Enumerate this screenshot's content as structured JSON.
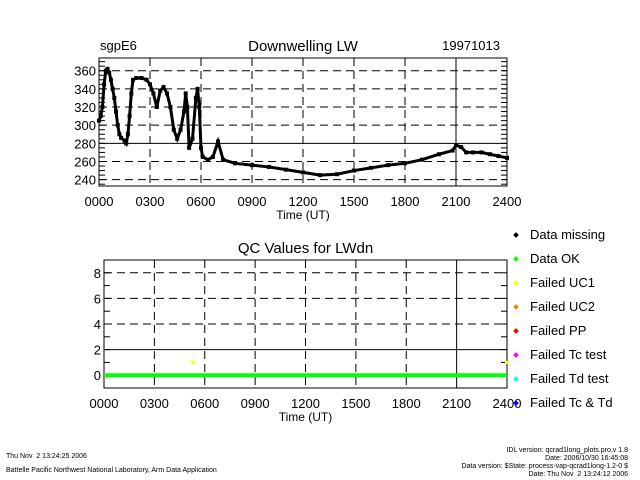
{
  "chart_data": [
    {
      "type": "scatter",
      "title": "Downwelling LW",
      "site": "sgpE6",
      "date": "19971013",
      "xlabel": "Time (UT)",
      "ylabel": "",
      "xlim": [
        0,
        24
      ],
      "ylim": [
        233,
        374
      ],
      "xticks": [
        "0000",
        "0300",
        "0600",
        "0900",
        "1200",
        "1500",
        "1800",
        "2100",
        "2400"
      ],
      "yticks": [
        240,
        260,
        280,
        300,
        320,
        340,
        360
      ],
      "grid": true,
      "points": [
        [
          0.0,
          305
        ],
        [
          0.1,
          310
        ],
        [
          0.2,
          320
        ],
        [
          0.3,
          345
        ],
        [
          0.4,
          360
        ],
        [
          0.5,
          362
        ],
        [
          0.6,
          358
        ],
        [
          0.7,
          350
        ],
        [
          0.8,
          340
        ],
        [
          0.9,
          330
        ],
        [
          1.0,
          315
        ],
        [
          1.1,
          300
        ],
        [
          1.2,
          290
        ],
        [
          1.3,
          286
        ],
        [
          1.5,
          283
        ],
        [
          1.6,
          280
        ],
        [
          1.7,
          290
        ],
        [
          1.8,
          310
        ],
        [
          1.9,
          335
        ],
        [
          2.0,
          350
        ],
        [
          2.2,
          352
        ],
        [
          2.5,
          352
        ],
        [
          2.8,
          350
        ],
        [
          3.0,
          345
        ],
        [
          3.2,
          335
        ],
        [
          3.4,
          320
        ],
        [
          3.6,
          338
        ],
        [
          3.8,
          342
        ],
        [
          4.0,
          335
        ],
        [
          4.2,
          320
        ],
        [
          4.4,
          295
        ],
        [
          4.6,
          285
        ],
        [
          4.8,
          295
        ],
        [
          5.0,
          315
        ],
        [
          5.1,
          335
        ],
        [
          5.2,
          320
        ],
        [
          5.3,
          275
        ],
        [
          5.5,
          285
        ],
        [
          5.7,
          330
        ],
        [
          5.8,
          340
        ],
        [
          5.9,
          320
        ],
        [
          6.0,
          275
        ],
        [
          6.1,
          265
        ],
        [
          6.4,
          262
        ],
        [
          6.7,
          265
        ],
        [
          7.0,
          282
        ],
        [
          7.3,
          262
        ],
        [
          8,
          258
        ],
        [
          9,
          256
        ],
        [
          10,
          254
        ],
        [
          11,
          251
        ],
        [
          12,
          248
        ],
        [
          13,
          245
        ],
        [
          14,
          246
        ],
        [
          15,
          250
        ],
        [
          16,
          253
        ],
        [
          17,
          256
        ],
        [
          18,
          258
        ],
        [
          19,
          262
        ],
        [
          20,
          268
        ],
        [
          20.8,
          272
        ],
        [
          21.0,
          278
        ],
        [
          21.3,
          276
        ],
        [
          21.6,
          270
        ],
        [
          22,
          270
        ],
        [
          22.5,
          270
        ],
        [
          23,
          268
        ],
        [
          23.5,
          266
        ],
        [
          24,
          264
        ]
      ]
    },
    {
      "type": "scatter",
      "title": "QC Values for LWdn",
      "xlabel": "Time (UT)",
      "ylabel": "",
      "xlim": [
        0,
        24
      ],
      "ylim": [
        -1,
        9
      ],
      "xticks": [
        "0000",
        "0300",
        "0600",
        "0900",
        "1200",
        "1500",
        "1800",
        "2100",
        "2400"
      ],
      "yticks": [
        0,
        2,
        4,
        6,
        8
      ],
      "grid": true,
      "series": [
        {
          "name": "Data OK",
          "color": "#00ff00",
          "value": 0,
          "range": [
            0,
            24
          ]
        },
        {
          "name": "Failed UC1",
          "color": "#ffff00",
          "points": [
            [
              5.3,
              1
            ],
            [
              24,
              1
            ]
          ]
        }
      ],
      "legend": {
        "placement": "right",
        "entries": [
          {
            "label": "Data missing",
            "color": "#000000"
          },
          {
            "label": "Data OK",
            "color": "#00ff00"
          },
          {
            "label": "Failed UC1",
            "color": "#ffff00"
          },
          {
            "label": "Failed UC2",
            "color": "#ff8000"
          },
          {
            "label": "Failed PP",
            "color": "#ff0000"
          },
          {
            "label": "Failed Tc test",
            "color": "#ff00ff"
          },
          {
            "label": "Failed Td test",
            "color": "#00ffff"
          },
          {
            "label": "Failed Tc & Td",
            "color": "#0000ff"
          }
        ]
      }
    }
  ],
  "footer": {
    "timestamp": "Thu Nov  2 13:24:25 2006",
    "org": "Battelle Pacific Northwest National Laboratory, Arm Data Application",
    "idl_version": "IDL version: qcrad1long_plots.pro,v 1.8",
    "idl_date": "Date: 2006/10/30 16:45:08",
    "data_version": "Data version: $State: process-vap-qcrad1long-1.2-0 $",
    "data_date": "Date: Thu Nov  2 13:24:12 2006"
  }
}
